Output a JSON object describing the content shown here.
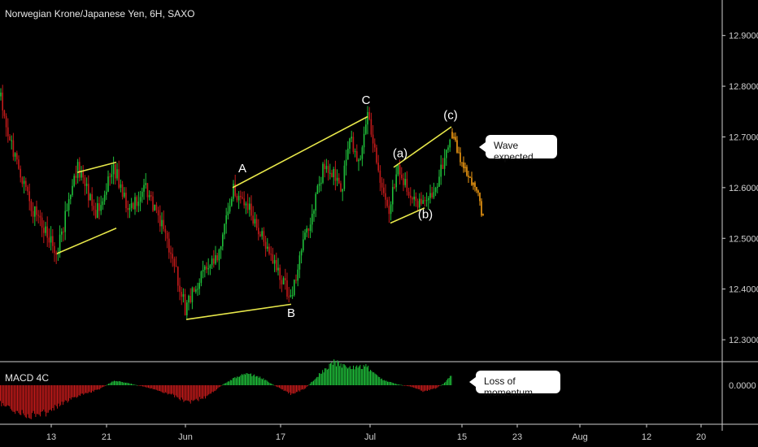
{
  "header": {
    "title": "Norwegian Krone/Japanese Yen, 6H, SAXO"
  },
  "macd": {
    "label": "MACD 4C",
    "zero_label": "0.0000"
  },
  "callouts": {
    "wave": "Wave expected",
    "momentum": "Loss of momentum"
  },
  "colors": {
    "up": "#1fbf3a",
    "down": "#c21a1a",
    "forecast": "#f39c12",
    "trendline": "#e8e84a",
    "axis_text": "#cfcfcf",
    "separator": "#cfcfcf"
  },
  "chart_data": {
    "type": "candlestick",
    "title": "Norwegian Krone/Japanese Yen, 6H, SAXO",
    "y_axis": {
      "ticks": [
        12.3,
        12.4,
        12.5,
        12.6,
        12.7,
        12.8,
        12.9
      ],
      "tick_labels": [
        "12.3000",
        "12.4000",
        "12.5000",
        "12.6000",
        "12.7000",
        "12.8000",
        "12.9000"
      ],
      "range": [
        12.26,
        12.97
      ]
    },
    "x_axis": {
      "tick_labels": [
        "13",
        "21",
        "Jun",
        "17",
        "Jul",
        "15",
        "23",
        "Aug",
        "12",
        "20"
      ]
    },
    "price_path": [
      {
        "x": 0,
        "y": 12.78
      },
      {
        "x": 12,
        "y": 12.7
      },
      {
        "x": 24,
        "y": 12.62
      },
      {
        "x": 45,
        "y": 12.54
      },
      {
        "x": 70,
        "y": 12.47
      },
      {
        "x": 95,
        "y": 12.64
      },
      {
        "x": 118,
        "y": 12.55
      },
      {
        "x": 140,
        "y": 12.64
      },
      {
        "x": 158,
        "y": 12.56
      },
      {
        "x": 180,
        "y": 12.6
      },
      {
        "x": 205,
        "y": 12.5
      },
      {
        "x": 228,
        "y": 12.36
      },
      {
        "x": 250,
        "y": 12.44
      },
      {
        "x": 270,
        "y": 12.47
      },
      {
        "x": 286,
        "y": 12.6
      },
      {
        "x": 305,
        "y": 12.56
      },
      {
        "x": 335,
        "y": 12.46
      },
      {
        "x": 358,
        "y": 12.38
      },
      {
        "x": 378,
        "y": 12.52
      },
      {
        "x": 400,
        "y": 12.65
      },
      {
        "x": 420,
        "y": 12.6
      },
      {
        "x": 430,
        "y": 12.7
      },
      {
        "x": 440,
        "y": 12.64
      },
      {
        "x": 452,
        "y": 12.74
      },
      {
        "x": 465,
        "y": 12.63
      },
      {
        "x": 478,
        "y": 12.55
      },
      {
        "x": 488,
        "y": 12.64
      },
      {
        "x": 500,
        "y": 12.6
      },
      {
        "x": 513,
        "y": 12.57
      },
      {
        "x": 522,
        "y": 12.57
      },
      {
        "x": 540,
        "y": 12.62
      },
      {
        "x": 555,
        "y": 12.71
      }
    ],
    "forecast_path": [
      {
        "x": 555,
        "y": 12.71
      },
      {
        "x": 565,
        "y": 12.66
      },
      {
        "x": 573,
        "y": 12.63
      },
      {
        "x": 580,
        "y": 12.61
      },
      {
        "x": 588,
        "y": 12.58
      },
      {
        "x": 594,
        "y": 12.54
      }
    ],
    "trendlines": [
      {
        "x1": 70,
        "y1": 12.47,
        "x2": 143,
        "y2": 12.52
      },
      {
        "x1": 95,
        "y1": 12.63,
        "x2": 143,
        "y2": 12.65
      },
      {
        "x1": 229,
        "y1": 12.34,
        "x2": 358,
        "y2": 12.37
      },
      {
        "x1": 286,
        "y1": 12.6,
        "x2": 452,
        "y2": 12.74
      },
      {
        "x1": 480,
        "y1": 12.53,
        "x2": 522,
        "y2": 12.56
      },
      {
        "x1": 484,
        "y1": 12.64,
        "x2": 555,
        "y2": 12.72
      }
    ],
    "wave_labels": [
      {
        "text": "A",
        "x": 298,
        "y": 12.63
      },
      {
        "text": "B",
        "x": 358,
        "y": 12.345
      },
      {
        "text": "C",
        "x": 450,
        "y": 12.765
      },
      {
        "text": "(a)",
        "x": 492,
        "y": 12.66
      },
      {
        "text": "(b)",
        "x": 523,
        "y": 12.54
      },
      {
        "text": "(c)",
        "x": 554,
        "y": 12.735
      }
    ],
    "macd_histogram": [
      {
        "x": 0,
        "v": -0.6
      },
      {
        "x": 15,
        "v": -0.85
      },
      {
        "x": 35,
        "v": -1.0
      },
      {
        "x": 55,
        "v": -0.9
      },
      {
        "x": 75,
        "v": -0.6
      },
      {
        "x": 100,
        "v": -0.3
      },
      {
        "x": 120,
        "v": -0.15
      },
      {
        "x": 140,
        "v": 0.15
      },
      {
        "x": 160,
        "v": 0.05
      },
      {
        "x": 185,
        "v": -0.1
      },
      {
        "x": 210,
        "v": -0.3
      },
      {
        "x": 232,
        "v": -0.55
      },
      {
        "x": 255,
        "v": -0.35
      },
      {
        "x": 275,
        "v": 0.05
      },
      {
        "x": 300,
        "v": 0.4
      },
      {
        "x": 320,
        "v": 0.25
      },
      {
        "x": 340,
        "v": -0.05
      },
      {
        "x": 358,
        "v": -0.3
      },
      {
        "x": 375,
        "v": -0.1
      },
      {
        "x": 392,
        "v": 0.35
      },
      {
        "x": 410,
        "v": 0.75
      },
      {
        "x": 430,
        "v": 0.55
      },
      {
        "x": 450,
        "v": 0.6
      },
      {
        "x": 468,
        "v": 0.2
      },
      {
        "x": 485,
        "v": 0.05
      },
      {
        "x": 505,
        "v": -0.05
      },
      {
        "x": 520,
        "v": -0.2
      },
      {
        "x": 535,
        "v": -0.1
      },
      {
        "x": 545,
        "v": 0.05
      },
      {
        "x": 555,
        "v": 0.35
      }
    ]
  }
}
